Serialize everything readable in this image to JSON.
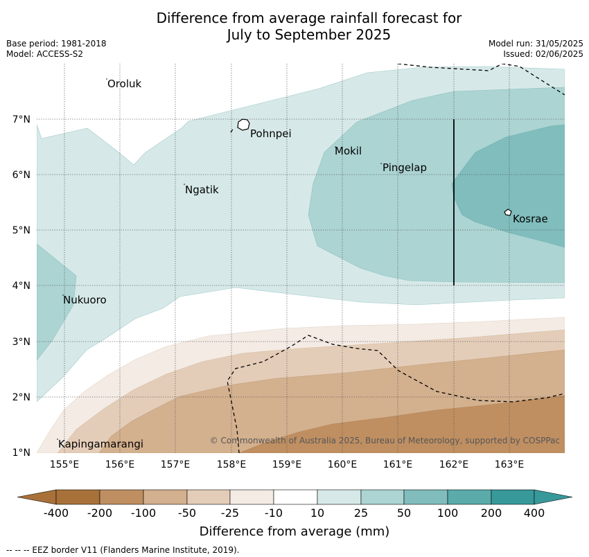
{
  "title_line1": "Difference from average rainfall forecast for",
  "title_line2": "July to September 2025",
  "base_period": "Base period: 1981-2018",
  "model": "Model: ACCESS-S2",
  "model_run": "Model run: 31/05/2025",
  "issued": "Issued: 02/06/2025",
  "copyright": "© Commonwealth of Australia 2025, Bureau of Meteorology, supported by COSPPac",
  "colorbar_label": "Difference from average (mm)",
  "footnote": "--  --  -- EEZ border V11 (Flanders Marine Institute, 2019).",
  "lon_ticks": [
    "155°E",
    "156°E",
    "157°E",
    "158°E",
    "159°E",
    "160°E",
    "161°E",
    "162°E",
    "163°E"
  ],
  "lat_ticks": [
    "1°N",
    "2°N",
    "3°N",
    "4°N",
    "5°N",
    "6°N",
    "7°N"
  ],
  "places": [
    {
      "name": "Oroluk",
      "lon": 155.75,
      "lat": 7.6
    },
    {
      "name": "Pohnpei",
      "lon": 158.3,
      "lat": 6.85
    },
    {
      "name": "Mokil",
      "lon": 159.75,
      "lat": 6.42
    },
    {
      "name": "Pingelap",
      "lon": 160.7,
      "lat": 6.2
    },
    {
      "name": "Ngatik",
      "lon": 157.1,
      "lat": 5.8
    },
    {
      "name": "Kosrae",
      "lon": 163.0,
      "lat": 5.3
    },
    {
      "name": "Nukuoro",
      "lon": 154.95,
      "lat": 3.85
    },
    {
      "name": "Kapingamarangi",
      "lon": 154.8,
      "lat": 1.07
    }
  ],
  "colorbar": {
    "ticks": [
      "-400",
      "-200",
      "-100",
      "-50",
      "-25",
      "-10",
      "10",
      "25",
      "50",
      "100",
      "200",
      "400"
    ],
    "colors": [
      "#a9713a",
      "#bf8f62",
      "#d3b08e",
      "#e4cdb8",
      "#f3ebe4",
      "#ffffff",
      "#d6e9e8",
      "#acd4d3",
      "#80bdbc",
      "#5aabaa",
      "#37999a"
    ]
  },
  "map": {
    "lon_range": [
      154.5,
      164.0
    ],
    "lat_range": [
      1.0,
      8.0
    ],
    "projection": "plate carree",
    "gridlines": "dotted",
    "contours": [
      {
        "level": "10 to 25",
        "color": "#d6e9e8",
        "region": "broad northern band"
      },
      {
        "level": "25 to 50",
        "color": "#acd4d3",
        "region": "east around Mokil, Pingelap and Kosrae; west near Nukuoro"
      },
      {
        "level": "50 to 100",
        "color": "#80bdbc",
        "region": "far east around Kosrae"
      },
      {
        "level": "-25 to -10",
        "color": "#f3ebe4",
        "region": "southern edge"
      },
      {
        "level": "-50 to -25",
        "color": "#e4cdb8",
        "region": "south"
      },
      {
        "level": "-100 to -50",
        "color": "#d3b08e",
        "region": "south-east"
      },
      {
        "level": "-200 to -100",
        "color": "#bf8f62",
        "region": "far south-east"
      }
    ]
  }
}
